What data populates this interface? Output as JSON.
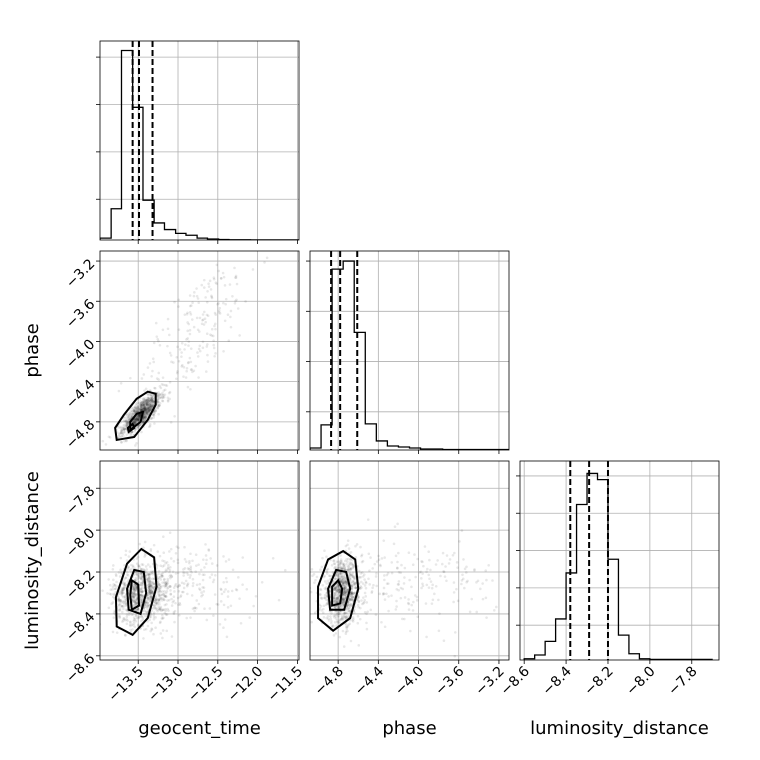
{
  "chart_data": {
    "type": "corner",
    "parameters": [
      "geocent_time",
      "phase",
      "luminosity_distance"
    ],
    "ranges": {
      "geocent_time": [
        -13.98,
        -11.48
      ],
      "phase": [
        -5.08,
        -3.1
      ],
      "luminosity_distance": [
        -8.62,
        -7.67
      ]
    },
    "ticks": {
      "geocent_time": [
        -13.5,
        -13.0,
        -12.5,
        -12.0,
        -11.5
      ],
      "phase": [
        -4.8,
        -4.4,
        -4.0,
        -3.6,
        -3.2
      ],
      "luminosity_distance": [
        -8.6,
        -8.4,
        -8.2,
        -8.0,
        -7.8
      ]
    },
    "tick_labels": {
      "geocent_time": [
        "−13.5",
        "−13.0",
        "−12.5",
        "−12.0",
        "−11.5"
      ],
      "phase": [
        "−4.8",
        "−4.4",
        "−4.0",
        "−3.6",
        "−3.2"
      ],
      "luminosity_distance": [
        "−8.6",
        "−8.4",
        "−8.2",
        "−8.0",
        "−7.8"
      ]
    },
    "quantiles": {
      "geocent_time": [
        -13.57,
        -13.49,
        -13.32
      ],
      "phase": [
        -4.87,
        -4.78,
        -4.61
      ],
      "luminosity_distance": [
        -8.38,
        -8.29,
        -8.2
      ]
    },
    "histograms": {
      "geocent_time": {
        "bin_edges": [
          -13.98,
          -13.84,
          -13.71,
          -13.57,
          -13.44,
          -13.3,
          -13.17,
          -13.03,
          -12.9,
          -12.76,
          -12.63,
          -12.49,
          -12.36,
          -12.22,
          -12.09,
          -11.95,
          -11.82,
          -11.68,
          -11.48
        ],
        "counts": [
          2,
          33,
          200,
          140,
          42,
          18,
          11,
          7,
          5,
          2,
          1,
          0.5,
          0.3,
          0.2,
          0.1,
          0.1,
          0.1,
          0.1
        ]
      },
      "phase": {
        "bin_edges": [
          -5.08,
          -4.97,
          -4.86,
          -4.75,
          -4.64,
          -4.53,
          -4.42,
          -4.31,
          -4.2,
          -4.09,
          -3.98,
          -3.87,
          -3.76,
          -3.65,
          -3.54,
          -3.43,
          -3.32,
          -3.21,
          -3.1
        ],
        "counts": [
          2,
          25,
          180,
          188,
          117,
          26,
          9,
          4,
          3,
          2,
          1,
          1,
          0.5,
          0.5,
          0.5,
          0.5,
          0.5,
          0.5
        ]
      },
      "luminosity_distance": {
        "bin_edges": [
          -8.6,
          -8.55,
          -8.5,
          -8.45,
          -8.4,
          -8.35,
          -8.3,
          -8.25,
          -8.2,
          -8.15,
          -8.1,
          -8.05,
          -8.0,
          -7.95,
          -7.9,
          -7.85,
          -7.8,
          -7.75,
          -7.7
        ],
        "counts": [
          1,
          4,
          15,
          33,
          70,
          125,
          150,
          145,
          81,
          20,
          5,
          1,
          0.5,
          0.5,
          0.5,
          0.5,
          0.5,
          0.5
        ]
      }
    },
    "hist_ymax": {
      "geocent_time": 210,
      "phase": 198,
      "luminosity_distance": 160
    },
    "hist_yticks": {
      "geocent_time": [
        43,
        93,
        143,
        193
      ],
      "phase": [
        38,
        88,
        138,
        188
      ],
      "luminosity_distance": [
        28,
        58,
        88,
        118,
        148
      ]
    },
    "pair_2d": {
      "phase_vs_geocent_time": {
        "x_param": "geocent_time",
        "y_param": "phase",
        "mean": [
          -13.46,
          -4.72
        ],
        "std": [
          0.12,
          0.1
        ],
        "corr": 0.75,
        "tail_center": [
          -12.8,
          -3.95
        ],
        "tail_spread": [
          0.4,
          0.45
        ],
        "tail_corr": 0.8,
        "contours": [
          [
            [
              -13.77,
              -4.98
            ],
            [
              -13.55,
              -4.95
            ],
            [
              -13.38,
              -4.78
            ],
            [
              -13.28,
              -4.63
            ],
            [
              -13.28,
              -4.52
            ],
            [
              -13.38,
              -4.5
            ],
            [
              -13.52,
              -4.57
            ],
            [
              -13.68,
              -4.73
            ],
            [
              -13.79,
              -4.86
            ]
          ],
          [
            [
              -13.6,
              -4.88
            ],
            [
              -13.47,
              -4.8
            ],
            [
              -13.44,
              -4.7
            ],
            [
              -13.52,
              -4.72
            ],
            [
              -13.6,
              -4.8
            ]
          ],
          [
            [
              -13.62,
              -4.9
            ],
            [
              -13.55,
              -4.86
            ],
            [
              -13.57,
              -4.82
            ],
            [
              -13.63,
              -4.86
            ]
          ]
        ]
      },
      "luminosity_distance_vs_geocent_time": {
        "x_param": "geocent_time",
        "y_param": "luminosity_distance",
        "mean": [
          -13.45,
          -8.3
        ],
        "std": [
          0.18,
          0.075
        ],
        "corr": 0.05,
        "tail_center": [
          -12.9,
          -8.25
        ],
        "tail_spread": [
          0.45,
          0.1
        ],
        "tail_corr": 0.0,
        "contours": [
          [
            [
              -13.77,
              -8.46
            ],
            [
              -13.57,
              -8.5
            ],
            [
              -13.38,
              -8.42
            ],
            [
              -13.27,
              -8.27
            ],
            [
              -13.3,
              -8.13
            ],
            [
              -13.46,
              -8.09
            ],
            [
              -13.64,
              -8.16
            ],
            [
              -13.78,
              -8.32
            ]
          ],
          [
            [
              -13.62,
              -8.38
            ],
            [
              -13.47,
              -8.4
            ],
            [
              -13.4,
              -8.3
            ],
            [
              -13.43,
              -8.2
            ],
            [
              -13.55,
              -8.19
            ],
            [
              -13.64,
              -8.28
            ]
          ],
          [
            [
              -13.58,
              -8.38
            ],
            [
              -13.49,
              -8.36
            ],
            [
              -13.5,
              -8.26
            ],
            [
              -13.58,
              -8.24
            ],
            [
              -13.6,
              -8.31
            ]
          ]
        ]
      },
      "luminosity_distance_vs_phase": {
        "x_param": "phase",
        "y_param": "luminosity_distance",
        "mean": [
          -4.76,
          -8.3
        ],
        "std": [
          0.1,
          0.075
        ],
        "corr": 0.05,
        "tail_center": [
          -4.1,
          -8.25
        ],
        "tail_spread": [
          0.45,
          0.1
        ],
        "tail_corr": 0.0,
        "contours": [
          [
            [
              -5.0,
              -8.42
            ],
            [
              -4.85,
              -8.48
            ],
            [
              -4.68,
              -8.42
            ],
            [
              -4.6,
              -8.28
            ],
            [
              -4.63,
              -8.14
            ],
            [
              -4.75,
              -8.1
            ],
            [
              -4.9,
              -8.14
            ],
            [
              -5.0,
              -8.27
            ]
          ],
          [
            [
              -4.88,
              -8.38
            ],
            [
              -4.74,
              -8.38
            ],
            [
              -4.68,
              -8.28
            ],
            [
              -4.72,
              -8.2
            ],
            [
              -4.82,
              -8.19
            ],
            [
              -4.9,
              -8.28
            ]
          ],
          [
            [
              -4.86,
              -8.36
            ],
            [
              -4.78,
              -8.35
            ],
            [
              -4.76,
              -8.28
            ],
            [
              -4.8,
              -8.24
            ],
            [
              -4.86,
              -8.27
            ]
          ]
        ]
      }
    },
    "grid": true,
    "line_color": "#000000",
    "scatter_color": "#000000"
  }
}
